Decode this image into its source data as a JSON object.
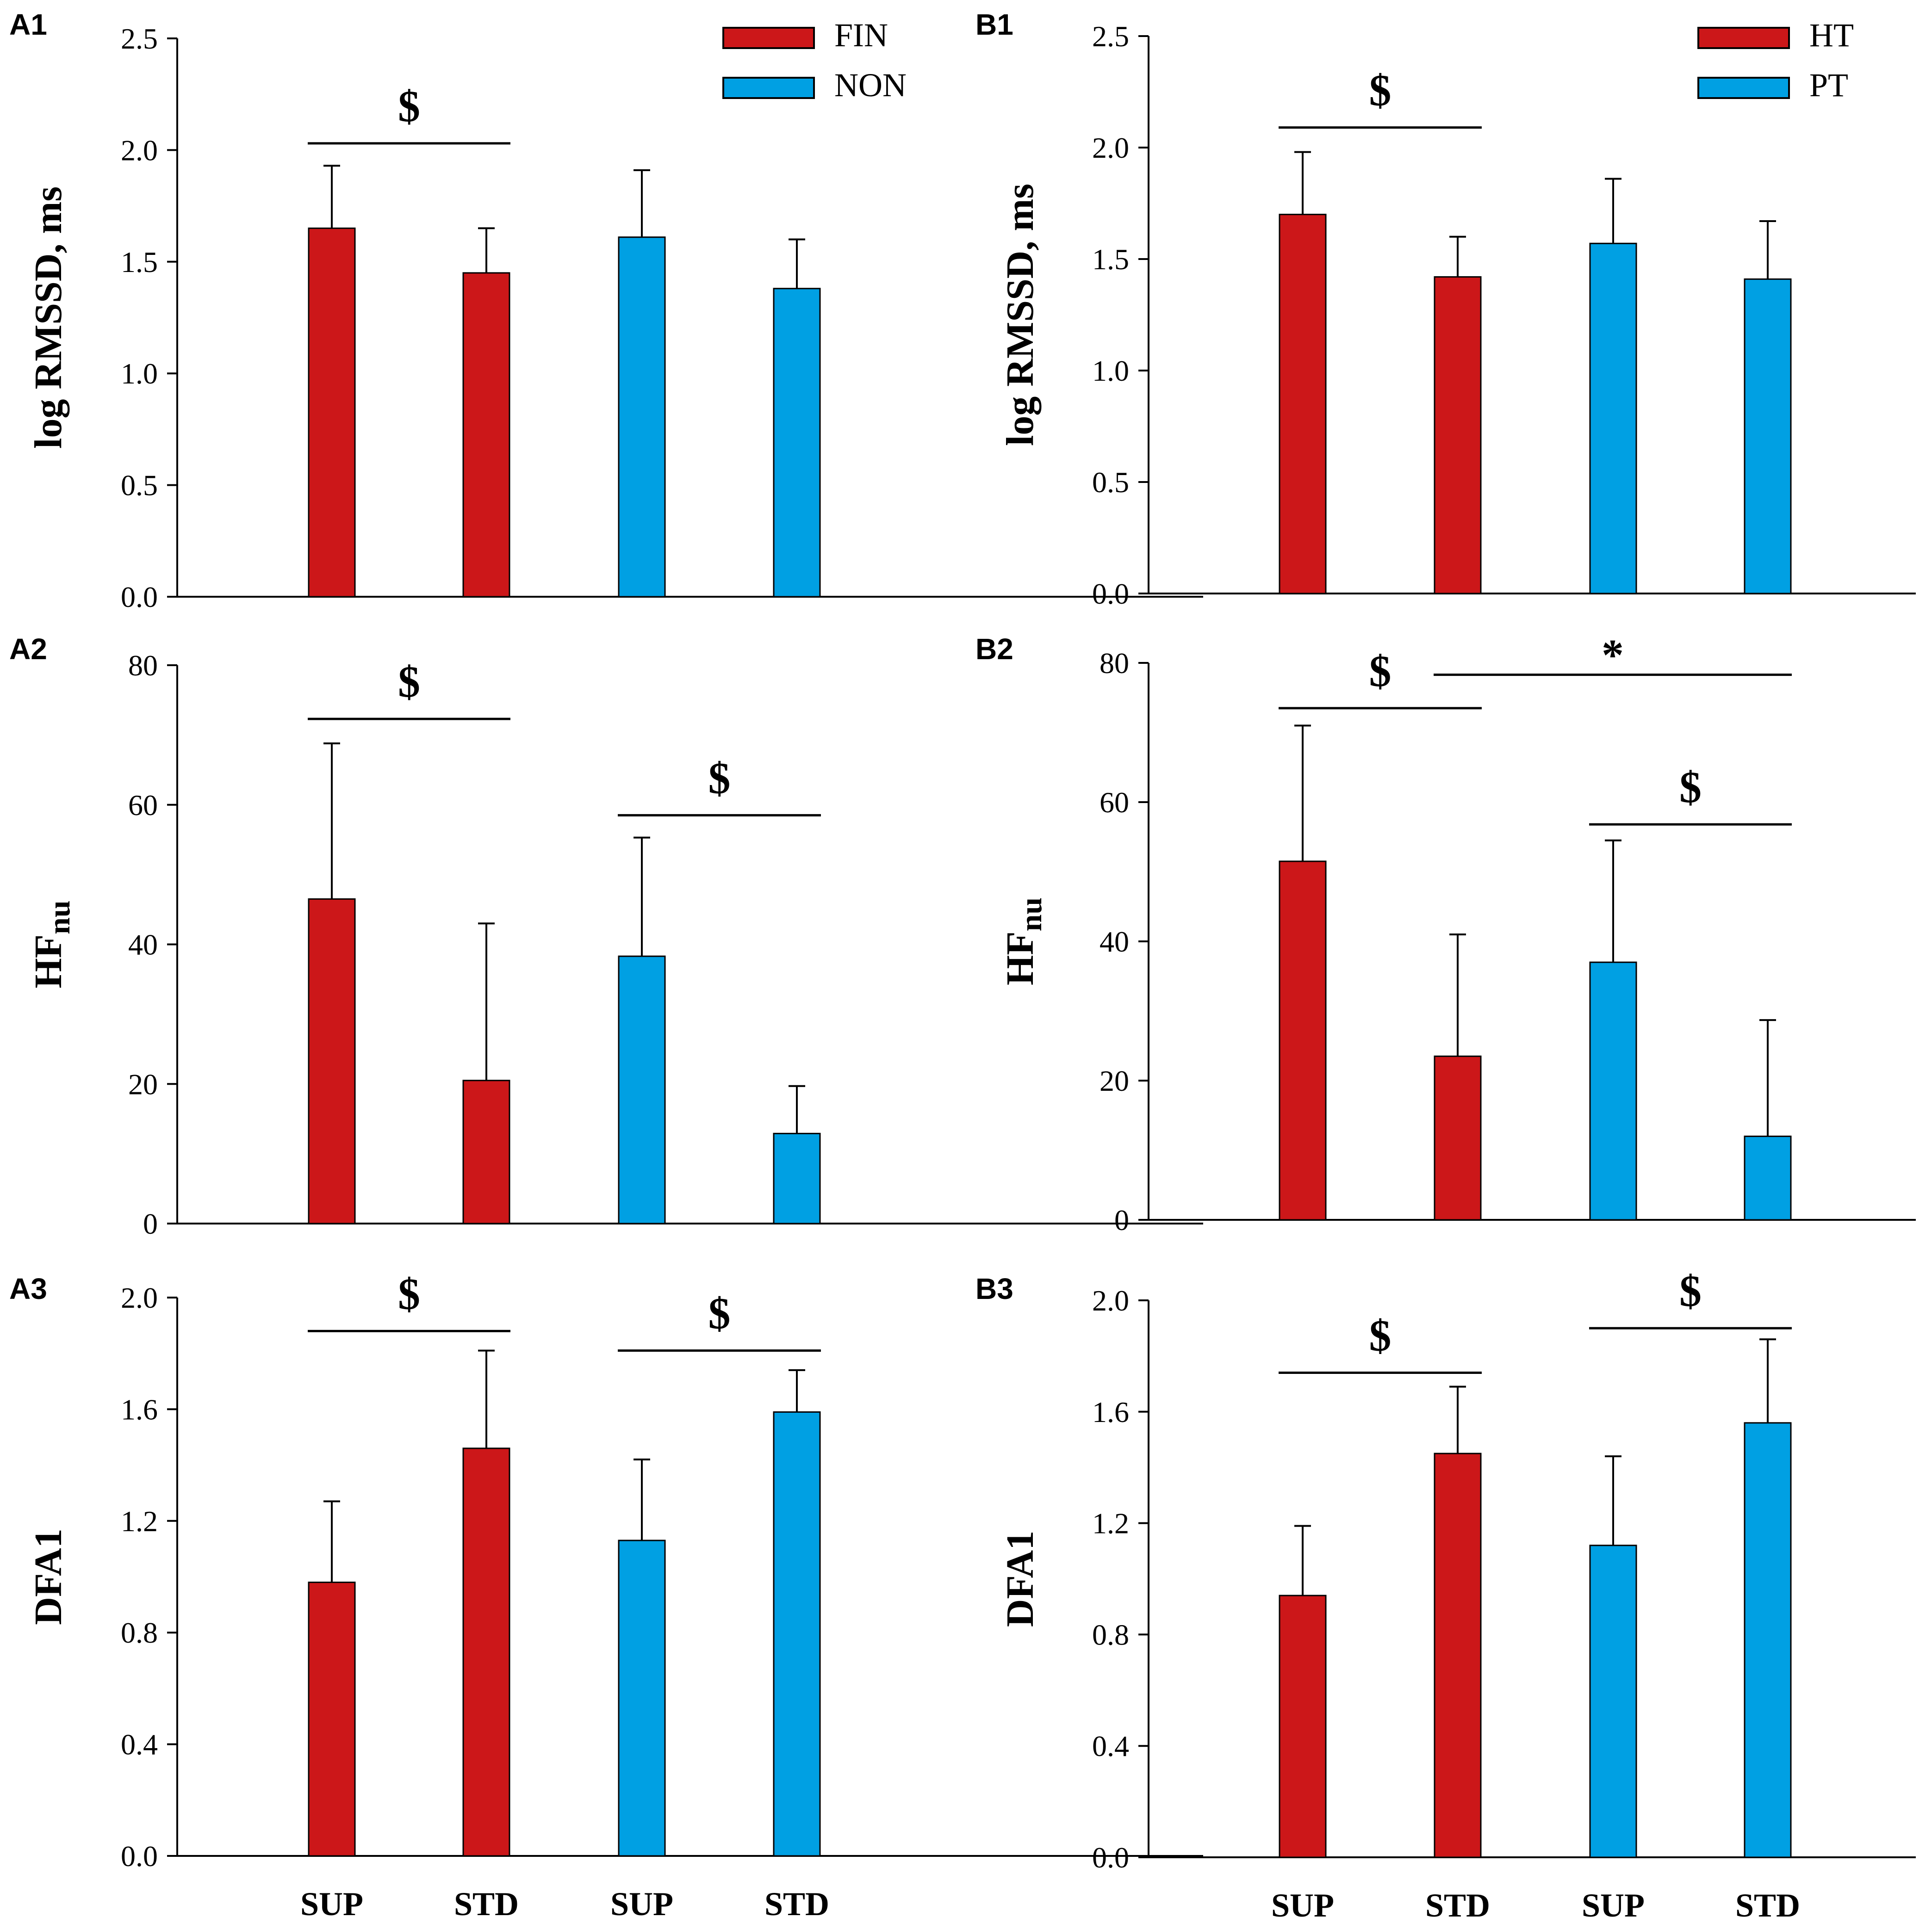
{
  "colors": {
    "red": "#CC1719",
    "blue": "#00A0E3"
  },
  "chart_data": [
    {
      "id": "A1",
      "panel_label": "A1",
      "type": "bar",
      "ylabel": "log RMSSD, ms",
      "ylabel_sub": "",
      "ylim": [
        0,
        2.5
      ],
      "ticks": [
        "0.0",
        "0.5",
        "1.0",
        "1.5",
        "2.0",
        "2.5"
      ],
      "categories": [
        "SUP",
        "STD",
        "SUP",
        "STD"
      ],
      "show_categories": false,
      "values": [
        1.65,
        1.45,
        1.61,
        1.38
      ],
      "errors": [
        0.28,
        0.2,
        0.3,
        0.22
      ],
      "bar_colors": [
        "red",
        "red",
        "blue",
        "blue"
      ],
      "legend": [
        {
          "name": "FIN",
          "color": "red"
        },
        {
          "name": "NON",
          "color": "blue"
        }
      ],
      "significance": [
        {
          "symbol": "$",
          "from": 0,
          "to": 1,
          "y": 2.03
        }
      ]
    },
    {
      "id": "B1",
      "panel_label": "B1",
      "type": "bar",
      "ylabel": "log RMSSD, ms",
      "ylabel_sub": "",
      "ylim": [
        0,
        2.5
      ],
      "ticks": [
        "0.0",
        "0.5",
        "1.0",
        "1.5",
        "2.0",
        "2.5"
      ],
      "categories": [
        "SUP",
        "STD",
        "SUP",
        "STD"
      ],
      "show_categories": false,
      "values": [
        1.7,
        1.42,
        1.57,
        1.41
      ],
      "errors": [
        0.28,
        0.18,
        0.29,
        0.26
      ],
      "bar_colors": [
        "red",
        "red",
        "blue",
        "blue"
      ],
      "legend": [
        {
          "name": "HT",
          "color": "red"
        },
        {
          "name": "PT",
          "color": "blue"
        }
      ],
      "significance": [
        {
          "symbol": "$",
          "from": 0,
          "to": 1,
          "y": 2.09
        }
      ]
    },
    {
      "id": "A2",
      "panel_label": "A2",
      "type": "bar",
      "ylabel": "HF",
      "ylabel_sub": "nu",
      "ylim": [
        0,
        80
      ],
      "ticks": [
        "0",
        "20",
        "40",
        "60",
        "80"
      ],
      "categories": [
        "SUP",
        "STD",
        "SUP",
        "STD"
      ],
      "show_categories": false,
      "values": [
        46.5,
        20.5,
        38.3,
        12.9
      ],
      "errors": [
        22.3,
        22.5,
        17,
        6.8
      ],
      "bar_colors": [
        "red",
        "red",
        "blue",
        "blue"
      ],
      "legend": [],
      "significance": [
        {
          "symbol": "$",
          "from": 0,
          "to": 1,
          "y": 72.3
        },
        {
          "symbol": "$",
          "from": 2,
          "to": 3,
          "y": 58.5
        }
      ]
    },
    {
      "id": "B2",
      "panel_label": "B2",
      "type": "bar",
      "ylabel": "HF",
      "ylabel_sub": "nu",
      "ylim": [
        0,
        80
      ],
      "ticks": [
        "0",
        "20",
        "40",
        "60",
        "80"
      ],
      "categories": [
        "SUP",
        "STD",
        "SUP",
        "STD"
      ],
      "show_categories": false,
      "values": [
        51.5,
        23.5,
        37,
        12
      ],
      "errors": [
        19.5,
        17.5,
        17.5,
        16.7
      ],
      "bar_colors": [
        "red",
        "red",
        "blue",
        "blue"
      ],
      "legend": [],
      "significance": [
        {
          "symbol": "$",
          "from": 0,
          "to": 1,
          "y": 73.5
        },
        {
          "symbol": "*",
          "from": 1,
          "to": 3,
          "y": 78.3
        },
        {
          "symbol": "$",
          "from": 2,
          "to": 3,
          "y": 56.8
        }
      ]
    },
    {
      "id": "A3",
      "panel_label": "A3",
      "type": "bar",
      "ylabel": "DFA1",
      "ylabel_sub": "",
      "ylim": [
        0,
        2.0
      ],
      "ticks": [
        "0.0",
        "0.4",
        "0.8",
        "1.2",
        "1.6",
        "2.0"
      ],
      "categories": [
        "SUP",
        "STD",
        "SUP",
        "STD"
      ],
      "show_categories": true,
      "values": [
        0.98,
        1.46,
        1.13,
        1.59
      ],
      "errors": [
        0.29,
        0.35,
        0.29,
        0.15
      ],
      "bar_colors": [
        "red",
        "red",
        "blue",
        "blue"
      ],
      "legend": [],
      "significance": [
        {
          "symbol": "$",
          "from": 0,
          "to": 1,
          "y": 1.88
        },
        {
          "symbol": "$",
          "from": 2,
          "to": 3,
          "y": 1.81
        }
      ]
    },
    {
      "id": "B3",
      "panel_label": "B3",
      "type": "bar",
      "ylabel": "DFA1",
      "ylabel_sub": "",
      "ylim": [
        0,
        2.0
      ],
      "ticks": [
        "0.0",
        "0.4",
        "0.8",
        "1.2",
        "1.6",
        "2.0"
      ],
      "categories": [
        "SUP",
        "STD",
        "SUP",
        "STD"
      ],
      "show_categories": true,
      "values": [
        0.94,
        1.45,
        1.12,
        1.56
      ],
      "errors": [
        0.25,
        0.24,
        0.32,
        0.3
      ],
      "bar_colors": [
        "red",
        "red",
        "blue",
        "blue"
      ],
      "legend": [],
      "significance": [
        {
          "symbol": "$",
          "from": 0,
          "to": 1,
          "y": 1.74
        },
        {
          "symbol": "$",
          "from": 2,
          "to": 3,
          "y": 1.9
        }
      ]
    }
  ]
}
